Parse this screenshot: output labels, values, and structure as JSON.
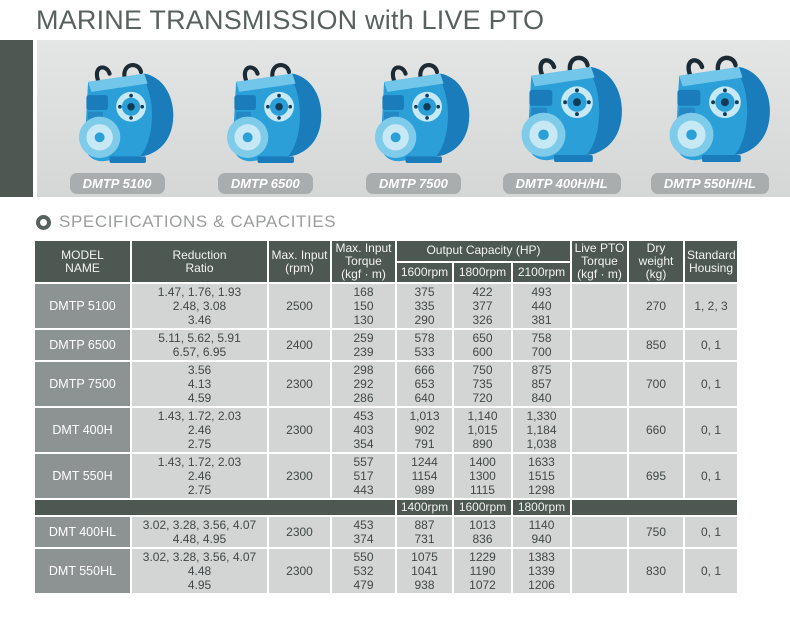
{
  "page": {
    "title": "MARINE TRANSMISSION with LIVE PTO",
    "section_heading": "SPECIFICATIONS & CAPACITIES"
  },
  "products": [
    {
      "label": "DMTP 5100"
    },
    {
      "label": "DMTP 6500"
    },
    {
      "label": "DMTP 7500"
    },
    {
      "label": "DMTP 400H/HL"
    },
    {
      "label": "DMTP 550H/HL"
    }
  ],
  "colors": {
    "header_bg": "#4e5853",
    "model_cell_bg": "#8d9293",
    "data_cell_bg": "#d3d5d5",
    "hero_band_bg": "#dcdede",
    "hero_accent_bg": "#4e5752",
    "plate_bg": "#a9adae",
    "title_text": "#59615e",
    "heading_text": "#9c9e9d",
    "machine_blue": "#2b9fd8"
  },
  "table": {
    "headers": {
      "model": [
        "MODEL",
        "NAME"
      ],
      "ratio": [
        "Reduction",
        "Ratio"
      ],
      "max_input": [
        "Max. Input",
        "(rpm)"
      ],
      "max_torque": [
        "Max. Input",
        "Torque",
        "(kgf · m)"
      ],
      "output_capacity": "Output Capacity (HP)",
      "output_speeds_upper": [
        "1600rpm",
        "1800rpm",
        "2100rpm"
      ],
      "output_speeds_lower": [
        "1400rpm",
        "1600rpm",
        "1800rpm"
      ],
      "live_pto": [
        "Live PTO",
        "Torque",
        "(kgf · m)"
      ],
      "dry_weight": [
        "Dry",
        "weight",
        "(kg)"
      ],
      "housing": [
        "Standard",
        "Housing"
      ]
    },
    "upper_rows": [
      {
        "model": "DMTP 5100",
        "ratios": [
          "1.47, 1.76, 1.93",
          "2.48, 3.08",
          "3.46"
        ],
        "max_input_rpm": "2500",
        "torque": [
          "168",
          "150",
          "130"
        ],
        "cap1": [
          "375",
          "335",
          "290"
        ],
        "cap2": [
          "422",
          "377",
          "326"
        ],
        "cap3": [
          "493",
          "440",
          "381"
        ],
        "live_pto": "",
        "dry_weight": "270",
        "housing": "1, 2, 3"
      },
      {
        "model": "DMTP 6500",
        "ratios": [
          "5.11, 5.62, 5.91",
          "6.57, 6.95"
        ],
        "max_input_rpm": "2400",
        "torque": [
          "259",
          "239"
        ],
        "cap1": [
          "578",
          "533"
        ],
        "cap2": [
          "650",
          "600"
        ],
        "cap3": [
          "758",
          "700"
        ],
        "live_pto": "",
        "dry_weight": "850",
        "housing": "0, 1"
      },
      {
        "model": "DMTP 7500",
        "ratios": [
          "3.56",
          "4.13",
          "4.59"
        ],
        "max_input_rpm": "2300",
        "torque": [
          "298",
          "292",
          "286"
        ],
        "cap1": [
          "666",
          "653",
          "640"
        ],
        "cap2": [
          "750",
          "735",
          "720"
        ],
        "cap3": [
          "875",
          "857",
          "840"
        ],
        "live_pto": "",
        "dry_weight": "700",
        "housing": "0, 1"
      },
      {
        "model": "DMT 400H",
        "ratios": [
          "1.43, 1.72, 2.03",
          "2.46",
          "2.75"
        ],
        "max_input_rpm": "2300",
        "torque": [
          "453",
          "403",
          "354"
        ],
        "cap1": [
          "1,013",
          "902",
          "791"
        ],
        "cap2": [
          "1,140",
          "1,015",
          "890"
        ],
        "cap3": [
          "1,330",
          "1,184",
          "1,038"
        ],
        "live_pto": "",
        "dry_weight": "660",
        "housing": "0, 1"
      },
      {
        "model": "DMT 550H",
        "ratios": [
          "1.43, 1.72, 2.03",
          "2.46",
          "2.75"
        ],
        "max_input_rpm": "2300",
        "torque": [
          "557",
          "517",
          "443"
        ],
        "cap1": [
          "1244",
          "1154",
          "989"
        ],
        "cap2": [
          "1400",
          "1300",
          "1115"
        ],
        "cap3": [
          "1633",
          "1515",
          "1298"
        ],
        "live_pto": "",
        "dry_weight": "695",
        "housing": "0, 1"
      }
    ],
    "lower_rows": [
      {
        "model": "DMT 400HL",
        "ratios": [
          "3.02, 3.28, 3.56, 4.07",
          "4.48, 4.95"
        ],
        "max_input_rpm": "2300",
        "torque": [
          "453",
          "374"
        ],
        "cap1": [
          "887",
          "731"
        ],
        "cap2": [
          "1013",
          "836"
        ],
        "cap3": [
          "1140",
          "940"
        ],
        "live_pto": "",
        "dry_weight": "750",
        "housing": "0, 1"
      },
      {
        "model": "DMT 550HL",
        "ratios": [
          "3.02, 3.28, 3.56, 4.07",
          "4.48",
          "4.95"
        ],
        "max_input_rpm": "2300",
        "torque": [
          "550",
          "532",
          "479"
        ],
        "cap1": [
          "1075",
          "1041",
          "938"
        ],
        "cap2": [
          "1229",
          "1190",
          "1072"
        ],
        "cap3": [
          "1383",
          "1339",
          "1206"
        ],
        "live_pto": "",
        "dry_weight": "830",
        "housing": "0, 1"
      }
    ]
  }
}
